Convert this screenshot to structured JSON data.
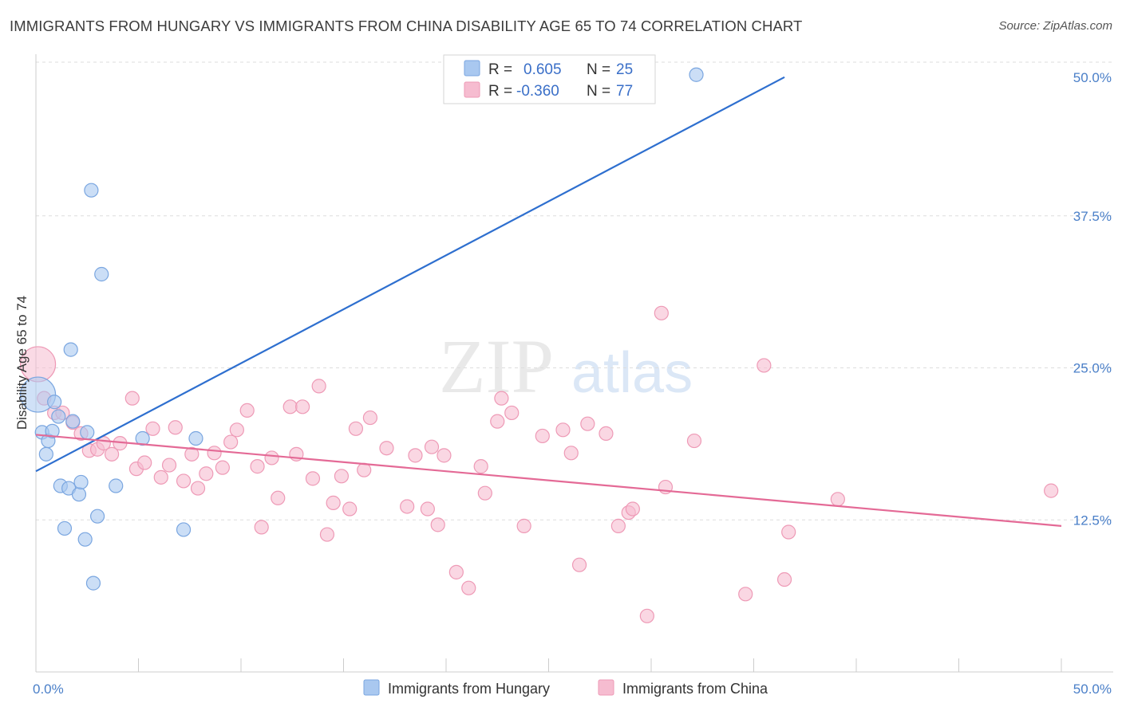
{
  "title": "IMMIGRANTS FROM HUNGARY VS IMMIGRANTS FROM CHINA DISABILITY AGE 65 TO 74 CORRELATION CHART",
  "source": "Source: ZipAtlas.com",
  "watermark": {
    "zip": "ZIP",
    "atlas": "atlas"
  },
  "colors": {
    "hungary_fill": "#a9c8f0",
    "hungary_stroke": "#7aa6e0",
    "hungary_line": "#2e6fcf",
    "china_fill": "#f6bcd0",
    "china_stroke": "#ee9ab6",
    "china_line": "#e46a96",
    "grid": "#dddddd",
    "tick_label": "#4a7fc8"
  },
  "legend_top": {
    "rows": [
      {
        "r_label": "R =",
        "r_value": "0.605",
        "n_label": "N =",
        "n_value": "25"
      },
      {
        "r_label": "R =",
        "r_value": "-0.360",
        "n_label": "N =",
        "n_value": "77"
      }
    ]
  },
  "legend_bottom": [
    "Immigrants from Hungary",
    "Immigrants from China"
  ],
  "chart_data": {
    "type": "scatter",
    "title": "IMMIGRANTS FROM HUNGARY VS IMMIGRANTS FROM CHINA DISABILITY AGE 65 TO 74 CORRELATION CHART",
    "xlabel": "",
    "ylabel": "Disability Age 65 to 74",
    "xlim": [
      0,
      50
    ],
    "ylim": [
      0,
      50
    ],
    "x_tick_labels": [
      {
        "value": 0,
        "label": "0.0%"
      },
      {
        "value": 50,
        "label": "50.0%"
      }
    ],
    "x_minor_ticks": [
      0,
      5,
      10,
      15,
      20,
      25,
      30,
      35,
      40,
      45,
      50
    ],
    "y_ticks": [
      {
        "value": 12.5,
        "label": "12.5%"
      },
      {
        "value": 25,
        "label": "25.0%"
      },
      {
        "value": 37.5,
        "label": "37.5%"
      },
      {
        "value": 50,
        "label": "50.0%"
      }
    ],
    "grid": true,
    "legend_position": "top-center",
    "series": [
      {
        "name": "Immigrants from Hungary",
        "R": 0.605,
        "N": 25,
        "trend": {
          "x": [
            0,
            36.5
          ],
          "y": [
            16.5,
            48.9
          ]
        },
        "points": [
          {
            "x": 0.1,
            "y": 22.8,
            "big": true
          },
          {
            "x": 0.3,
            "y": 19.7
          },
          {
            "x": 0.5,
            "y": 17.9
          },
          {
            "x": 0.6,
            "y": 19.0
          },
          {
            "x": 0.8,
            "y": 19.8
          },
          {
            "x": 0.9,
            "y": 22.2
          },
          {
            "x": 1.1,
            "y": 21.0
          },
          {
            "x": 1.2,
            "y": 15.3
          },
          {
            "x": 1.4,
            "y": 11.8
          },
          {
            "x": 1.6,
            "y": 15.1
          },
          {
            "x": 1.7,
            "y": 26.5
          },
          {
            "x": 1.8,
            "y": 20.6
          },
          {
            "x": 2.1,
            "y": 14.6
          },
          {
            "x": 2.2,
            "y": 15.6
          },
          {
            "x": 2.4,
            "y": 10.9
          },
          {
            "x": 2.5,
            "y": 19.7
          },
          {
            "x": 2.7,
            "y": 39.6
          },
          {
            "x": 2.8,
            "y": 7.3
          },
          {
            "x": 3.0,
            "y": 12.8
          },
          {
            "x": 3.2,
            "y": 32.7
          },
          {
            "x": 3.9,
            "y": 15.3
          },
          {
            "x": 5.2,
            "y": 19.2
          },
          {
            "x": 7.2,
            "y": 11.7
          },
          {
            "x": 7.8,
            "y": 19.2
          },
          {
            "x": 32.2,
            "y": 49.1
          }
        ]
      },
      {
        "name": "Immigrants from China",
        "R": -0.36,
        "N": 77,
        "trend": {
          "x": [
            0,
            50
          ],
          "y": [
            19.5,
            12.0
          ]
        },
        "points": [
          {
            "x": 0.1,
            "y": 25.3,
            "big": true
          },
          {
            "x": 0.4,
            "y": 22.5
          },
          {
            "x": 0.9,
            "y": 21.3
          },
          {
            "x": 1.3,
            "y": 21.3
          },
          {
            "x": 1.8,
            "y": 20.5
          },
          {
            "x": 2.2,
            "y": 19.6
          },
          {
            "x": 2.6,
            "y": 18.2
          },
          {
            "x": 3.0,
            "y": 18.3
          },
          {
            "x": 3.3,
            "y": 18.8
          },
          {
            "x": 3.7,
            "y": 17.9
          },
          {
            "x": 4.1,
            "y": 18.8
          },
          {
            "x": 4.7,
            "y": 22.5
          },
          {
            "x": 4.9,
            "y": 16.7
          },
          {
            "x": 5.3,
            "y": 17.2
          },
          {
            "x": 5.7,
            "y": 20.0
          },
          {
            "x": 6.1,
            "y": 16.0
          },
          {
            "x": 6.5,
            "y": 17.0
          },
          {
            "x": 6.8,
            "y": 20.1
          },
          {
            "x": 7.2,
            "y": 15.7
          },
          {
            "x": 7.6,
            "y": 17.9
          },
          {
            "x": 7.9,
            "y": 15.1
          },
          {
            "x": 8.3,
            "y": 16.3
          },
          {
            "x": 8.7,
            "y": 18.0
          },
          {
            "x": 9.1,
            "y": 16.8
          },
          {
            "x": 9.5,
            "y": 18.9
          },
          {
            "x": 9.8,
            "y": 19.9
          },
          {
            "x": 10.3,
            "y": 21.5
          },
          {
            "x": 10.8,
            "y": 16.9
          },
          {
            "x": 11.0,
            "y": 11.9
          },
          {
            "x": 11.5,
            "y": 17.6
          },
          {
            "x": 11.8,
            "y": 14.3
          },
          {
            "x": 12.4,
            "y": 21.8
          },
          {
            "x": 12.7,
            "y": 17.9
          },
          {
            "x": 13.0,
            "y": 21.8
          },
          {
            "x": 13.5,
            "y": 15.9
          },
          {
            "x": 13.8,
            "y": 23.5
          },
          {
            "x": 14.2,
            "y": 11.3
          },
          {
            "x": 14.5,
            "y": 13.9
          },
          {
            "x": 14.9,
            "y": 16.1
          },
          {
            "x": 15.3,
            "y": 13.4
          },
          {
            "x": 15.6,
            "y": 20.0
          },
          {
            "x": 16.0,
            "y": 16.6
          },
          {
            "x": 16.3,
            "y": 20.9
          },
          {
            "x": 17.1,
            "y": 18.4
          },
          {
            "x": 18.1,
            "y": 13.6
          },
          {
            "x": 18.5,
            "y": 17.8
          },
          {
            "x": 19.1,
            "y": 13.4
          },
          {
            "x": 19.3,
            "y": 18.5
          },
          {
            "x": 19.6,
            "y": 12.1
          },
          {
            "x": 19.9,
            "y": 17.8
          },
          {
            "x": 20.5,
            "y": 8.2
          },
          {
            "x": 21.1,
            "y": 6.9
          },
          {
            "x": 21.7,
            "y": 16.9
          },
          {
            "x": 21.9,
            "y": 14.7
          },
          {
            "x": 22.5,
            "y": 20.6
          },
          {
            "x": 22.7,
            "y": 22.5
          },
          {
            "x": 23.2,
            "y": 21.3
          },
          {
            "x": 23.8,
            "y": 12.0
          },
          {
            "x": 24.7,
            "y": 19.4
          },
          {
            "x": 25.7,
            "y": 19.9
          },
          {
            "x": 26.1,
            "y": 18.0
          },
          {
            "x": 26.5,
            "y": 8.8
          },
          {
            "x": 26.9,
            "y": 20.4
          },
          {
            "x": 27.8,
            "y": 19.6
          },
          {
            "x": 28.4,
            "y": 12.0
          },
          {
            "x": 28.9,
            "y": 13.1
          },
          {
            "x": 29.1,
            "y": 13.4
          },
          {
            "x": 29.8,
            "y": 4.6
          },
          {
            "x": 30.5,
            "y": 29.5
          },
          {
            "x": 30.7,
            "y": 15.2
          },
          {
            "x": 32.1,
            "y": 19.0
          },
          {
            "x": 34.6,
            "y": 6.4
          },
          {
            "x": 35.5,
            "y": 25.2
          },
          {
            "x": 36.5,
            "y": 7.6
          },
          {
            "x": 36.7,
            "y": 11.5
          },
          {
            "x": 39.1,
            "y": 14.2
          },
          {
            "x": 49.5,
            "y": 14.9
          }
        ]
      }
    ]
  }
}
